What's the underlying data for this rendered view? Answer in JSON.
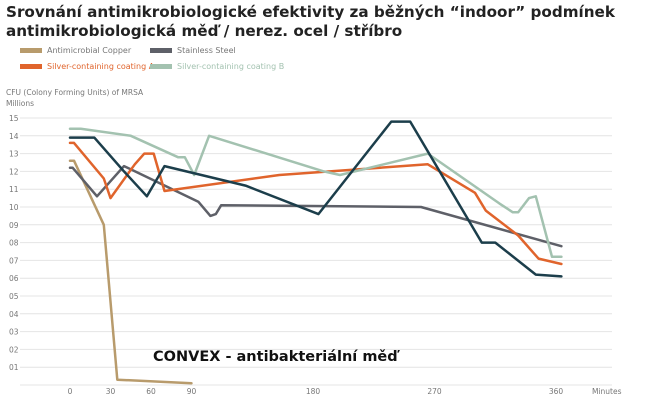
{
  "chart_data": {
    "type": "line",
    "title": "Srovnání antimikrobiologické efektivity za běžných “indoor” podmínek antimikrobiologická měď / nerez. ocel / stříbro",
    "ylabel": "CFU (Colony Forming Units) of MRSA",
    "yunit": "Millions",
    "xlabel": "Minutes",
    "xlim": [
      0,
      390
    ],
    "ylim": [
      0,
      15.5
    ],
    "x_ticks": [
      0,
      30,
      60,
      90,
      180,
      270,
      360
    ],
    "y_ticks": [
      {
        "value": 1,
        "label": "01"
      },
      {
        "value": 2,
        "label": "02"
      },
      {
        "value": 3,
        "label": "03"
      },
      {
        "value": 4,
        "label": "04"
      },
      {
        "value": 5,
        "label": "05"
      },
      {
        "value": 6,
        "label": "06"
      },
      {
        "value": 7,
        "label": "07"
      },
      {
        "value": 8,
        "label": "08"
      },
      {
        "value": 9,
        "label": "09"
      },
      {
        "value": 10,
        "label": "10"
      },
      {
        "value": 11,
        "label": "11"
      },
      {
        "value": 12,
        "label": "12"
      },
      {
        "value": 13,
        "label": "13"
      },
      {
        "value": 14,
        "label": "14"
      },
      {
        "value": 15,
        "label": "15"
      }
    ],
    "grid": true,
    "legend_position": "top-left",
    "annotation": "CONVEX - antibakteriální měď",
    "series": [
      {
        "name": "Antimicrobial Copper",
        "color": "#b89b6c",
        "label_color": "#777777",
        "x": [
          0,
          3,
          25,
          35,
          90
        ],
        "y": [
          12.6,
          12.6,
          9.0,
          0.3,
          0.1
        ]
      },
      {
        "name": "Stainless Steel",
        "color": "#5e6068",
        "label_color": "#777777",
        "x": [
          0,
          2,
          20,
          40,
          95,
          104,
          108,
          112,
          260,
          364
        ],
        "y": [
          12.2,
          12.2,
          10.6,
          12.3,
          10.3,
          9.5,
          9.6,
          10.1,
          10.0,
          7.8
        ]
      },
      {
        "name": "Silver-containing coating A",
        "color": "#e0642c",
        "label_color": "#e0642c",
        "x": [
          0,
          3,
          25,
          30,
          48,
          55,
          62,
          70,
          155,
          265,
          300,
          308,
          332,
          347,
          364
        ],
        "y": [
          13.6,
          13.6,
          11.6,
          10.5,
          12.4,
          13.0,
          13.0,
          10.9,
          11.8,
          12.4,
          10.8,
          9.8,
          8.4,
          7.1,
          6.8
        ]
      },
      {
        "name": "Silver-containing coating B",
        "color": "#a3c2b0",
        "label_color": "#a3c2b0",
        "x": [
          0,
          8,
          45,
          80,
          85,
          92,
          103,
          188,
          200,
          265,
          318,
          328,
          332,
          340,
          345,
          357,
          364
        ],
        "y": [
          14.4,
          14.4,
          14.0,
          12.8,
          12.8,
          11.8,
          14.0,
          12.0,
          11.8,
          13.0,
          10.2,
          9.7,
          9.7,
          10.5,
          10.6,
          7.2,
          7.2
        ]
      },
      {
        "name": "",
        "color": "#1c3e4b",
        "label_color": "#1c3e4b",
        "x": [
          0,
          18,
          40,
          57,
          70,
          130,
          184,
          238,
          252,
          305,
          315,
          345,
          364
        ],
        "y": [
          13.9,
          13.9,
          12.0,
          10.6,
          12.3,
          11.2,
          9.6,
          14.8,
          14.8,
          8.0,
          8.0,
          6.2,
          6.1
        ]
      }
    ]
  }
}
